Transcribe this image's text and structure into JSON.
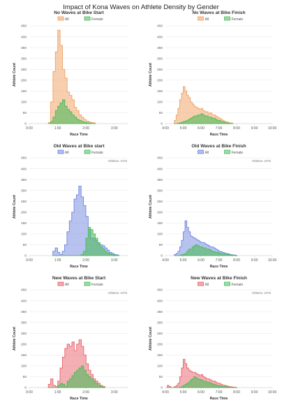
{
  "title": "Impact of Kona Waves on Athlete Density by Gender",
  "colors": {
    "all_orange": "#f0a060",
    "all_blue": "#6f86e0",
    "all_red": "#e8606a",
    "female_green": "#4cbb5a",
    "grid": "#e6e6e6",
    "axis": "#cccccc",
    "text": "#555555"
  },
  "chart_data": [
    {
      "type": "area",
      "title": "No Waves at Bike Start",
      "xlabel": "Race Time",
      "ylabel": "Athlete Count",
      "annotation": "",
      "all_color_key": "all_orange",
      "ylim": [
        0,
        450
      ],
      "yticks": [
        0,
        50,
        100,
        150,
        200,
        250,
        300,
        350,
        400,
        450
      ],
      "xlim": [
        0,
        3.5
      ],
      "xticks": [
        0,
        1,
        2,
        3
      ],
      "xtick_labels": [
        "0:00",
        "1:00",
        "2:00",
        "3:00"
      ],
      "legend": [
        "All",
        "Female"
      ],
      "bin_start": 0.67,
      "bin_width": 0.0833,
      "series": [
        {
          "name": "All",
          "values": [
            5,
            100,
            240,
            330,
            430,
            360,
            250,
            210,
            145,
            130,
            110,
            75,
            60,
            40,
            30,
            20,
            12,
            8,
            5,
            3
          ]
        },
        {
          "name": "Female",
          "values": [
            0,
            10,
            30,
            60,
            80,
            95,
            110,
            80,
            65,
            55,
            40,
            30,
            20,
            15,
            10,
            6,
            4,
            2,
            1,
            0
          ]
        }
      ]
    },
    {
      "type": "area",
      "title": "No Waves at Bike Finish",
      "xlabel": "Race Time",
      "ylabel": "Athlete Count",
      "annotation": "",
      "all_color_key": "all_orange",
      "ylim": [
        0,
        450
      ],
      "yticks": [
        0,
        50,
        100,
        150,
        200,
        250,
        300,
        350,
        400,
        450
      ],
      "xlim": [
        4,
        10
      ],
      "xticks": [
        4,
        5,
        6,
        7,
        8,
        9,
        10
      ],
      "xtick_labels": [
        "4:00",
        "5:00",
        "6:00",
        "7:00",
        "8:00",
        "9:00",
        "10:00"
      ],
      "legend": [
        "All",
        "Female"
      ],
      "bin_start": 4.5,
      "bin_width": 0.1,
      "series": [
        {
          "name": "All",
          "values": [
            15,
            40,
            70,
            110,
            140,
            170,
            150,
            130,
            120,
            100,
            90,
            80,
            75,
            70,
            65,
            70,
            60,
            55,
            55,
            45,
            50,
            40,
            40,
            35,
            30,
            25,
            20,
            15,
            10,
            8,
            5,
            3,
            2
          ]
        },
        {
          "name": "Female",
          "values": [
            0,
            0,
            2,
            4,
            6,
            10,
            12,
            15,
            20,
            25,
            30,
            35,
            35,
            40,
            40,
            45,
            40,
            35,
            35,
            30,
            30,
            25,
            25,
            20,
            15,
            15,
            10,
            8,
            5,
            3,
            2,
            1,
            0
          ]
        }
      ]
    },
    {
      "type": "area",
      "title": "Old Waves at Bike start",
      "xlabel": "Race Time",
      "ylabel": "Athlete Count",
      "annotation": "Athletes: 2375",
      "all_color_key": "all_blue",
      "ylim": [
        0,
        450
      ],
      "yticks": [
        0,
        50,
        100,
        150,
        200,
        250,
        300,
        350,
        400,
        450
      ],
      "xlim": [
        0,
        3.5
      ],
      "xticks": [
        0,
        1,
        2,
        3
      ],
      "xtick_labels": [
        "0:00",
        "1:00",
        "2:00",
        "3:00"
      ],
      "legend": [
        "All",
        "Female"
      ],
      "bin_start": 0.83,
      "bin_width": 0.0833,
      "series": [
        {
          "name": "All",
          "values": [
            20,
            35,
            15,
            5,
            20,
            50,
            110,
            160,
            200,
            260,
            280,
            320,
            270,
            230,
            180,
            120,
            80,
            80,
            70,
            55,
            50,
            45,
            35,
            25,
            15,
            10,
            5,
            3
          ]
        },
        {
          "name": "Female",
          "values": [
            0,
            0,
            0,
            0,
            0,
            0,
            0,
            0,
            0,
            0,
            0,
            0,
            5,
            20,
            80,
            130,
            120,
            100,
            80,
            60,
            40,
            30,
            20,
            12,
            8,
            4,
            2,
            1
          ]
        }
      ]
    },
    {
      "type": "area",
      "title": "Old Waves at Bike Finish",
      "xlabel": "Race Time",
      "ylabel": "Athlete Count",
      "annotation": "Athletes: 2375",
      "all_color_key": "all_blue",
      "ylim": [
        0,
        450
      ],
      "yticks": [
        0,
        50,
        100,
        150,
        200,
        250,
        300,
        350,
        400,
        450
      ],
      "xlim": [
        4,
        10
      ],
      "xticks": [
        4,
        5,
        6,
        7,
        8,
        9,
        10
      ],
      "xtick_labels": [
        "4:00",
        "5:00",
        "6:00",
        "7:00",
        "8:00",
        "9:00",
        "10:00"
      ],
      "legend": [
        "All",
        "Female"
      ],
      "bin_start": 4.5,
      "bin_width": 0.1,
      "series": [
        {
          "name": "All",
          "values": [
            5,
            10,
            20,
            40,
            70,
            110,
            160,
            130,
            110,
            90,
            85,
            80,
            75,
            70,
            65,
            60,
            60,
            55,
            50,
            45,
            40,
            40,
            35,
            30,
            25,
            20,
            18,
            15,
            12,
            10,
            8,
            5,
            4,
            3,
            2
          ]
        },
        {
          "name": "Female",
          "values": [
            0,
            0,
            0,
            2,
            4,
            6,
            10,
            20,
            30,
            30,
            40,
            45,
            50,
            45,
            40,
            40,
            35,
            35,
            30,
            30,
            25,
            20,
            18,
            15,
            15,
            12,
            10,
            8,
            6,
            5,
            4,
            3,
            2,
            1,
            0
          ]
        }
      ]
    },
    {
      "type": "area",
      "title": "New Waves at Bike Start",
      "xlabel": "Race Time",
      "ylabel": "Athlete Count",
      "annotation": "Athletes: 2375",
      "all_color_key": "all_red",
      "ylim": [
        0,
        450
      ],
      "yticks": [
        0,
        50,
        100,
        150,
        200,
        250,
        300,
        350,
        400,
        450
      ],
      "xlim": [
        0,
        3.5
      ],
      "xticks": [
        0,
        1,
        2,
        3
      ],
      "xtick_labels": [
        "0:00",
        "1:00",
        "2:00",
        "3:00"
      ],
      "legend": [
        "All",
        "Female"
      ],
      "bin_start": 0.67,
      "bin_width": 0.0833,
      "series": [
        {
          "name": "All",
          "values": [
            15,
            40,
            10,
            5,
            30,
            90,
            140,
            180,
            200,
            190,
            210,
            170,
            200,
            220,
            190,
            150,
            110,
            80,
            60,
            40,
            30,
            20,
            10,
            5
          ]
        },
        {
          "name": "Female",
          "values": [
            0,
            0,
            0,
            0,
            10,
            20,
            15,
            5,
            30,
            40,
            55,
            70,
            80,
            90,
            100,
            80,
            60,
            50,
            40,
            30,
            20,
            10,
            5,
            2
          ]
        }
      ]
    },
    {
      "type": "area",
      "title": "New Waves at Bike Finish",
      "xlabel": "Race Time",
      "ylabel": "Athlete Count",
      "annotation": "Athletes: 2375",
      "all_color_key": "all_red",
      "ylim": [
        0,
        450
      ],
      "yticks": [
        0,
        50,
        100,
        150,
        200,
        250,
        300,
        350,
        400,
        450
      ],
      "xlim": [
        4,
        10
      ],
      "xticks": [
        4,
        5,
        6,
        7,
        8,
        9,
        10
      ],
      "xtick_labels": [
        "4:00",
        "5:00",
        "6:00",
        "7:00",
        "8:00",
        "9:00",
        "10:00"
      ],
      "legend": [
        "All",
        "Female"
      ],
      "bin_start": 4.1,
      "bin_width": 0.1,
      "series": [
        {
          "name": "All",
          "values": [
            10,
            5,
            0,
            0,
            5,
            10,
            20,
            50,
            90,
            130,
            110,
            90,
            80,
            75,
            70,
            70,
            65,
            60,
            55,
            60,
            50,
            45,
            40,
            40,
            35,
            30,
            30,
            25,
            20,
            20,
            15,
            12,
            10,
            8,
            5,
            4,
            3,
            2,
            1
          ]
        },
        {
          "name": "Female",
          "values": [
            0,
            0,
            0,
            0,
            0,
            0,
            0,
            2,
            5,
            10,
            15,
            20,
            25,
            35,
            40,
            50,
            45,
            40,
            38,
            35,
            30,
            30,
            25,
            25,
            20,
            18,
            15,
            12,
            10,
            8,
            6,
            5,
            4,
            3,
            2,
            1,
            1,
            0,
            0
          ]
        }
      ]
    }
  ]
}
